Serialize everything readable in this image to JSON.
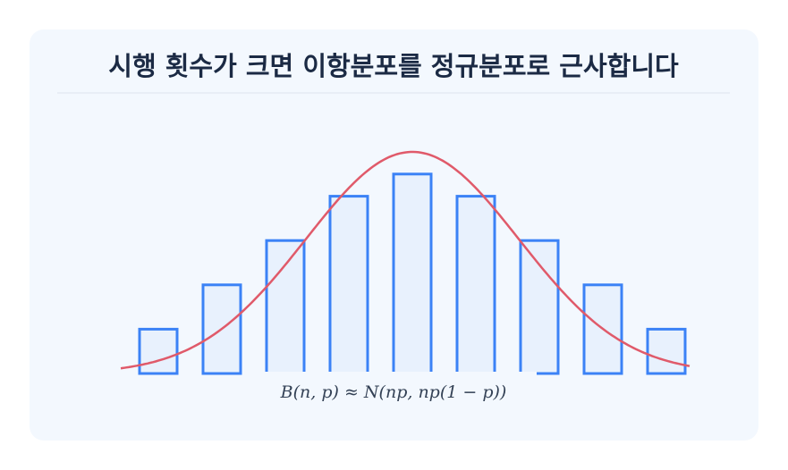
{
  "chart_data": {
    "type": "bar",
    "title": "시행 횟수가 크면 이항분포를 정규분포로 근사합니다",
    "values": [
      1,
      2,
      3,
      4,
      4.5,
      4,
      3,
      2,
      1
    ],
    "color": "#3b82f6",
    "ylim": [
      0,
      5
    ],
    "annotation": "B(n, p) ≈ N(np, np(1 − p))"
  }
}
